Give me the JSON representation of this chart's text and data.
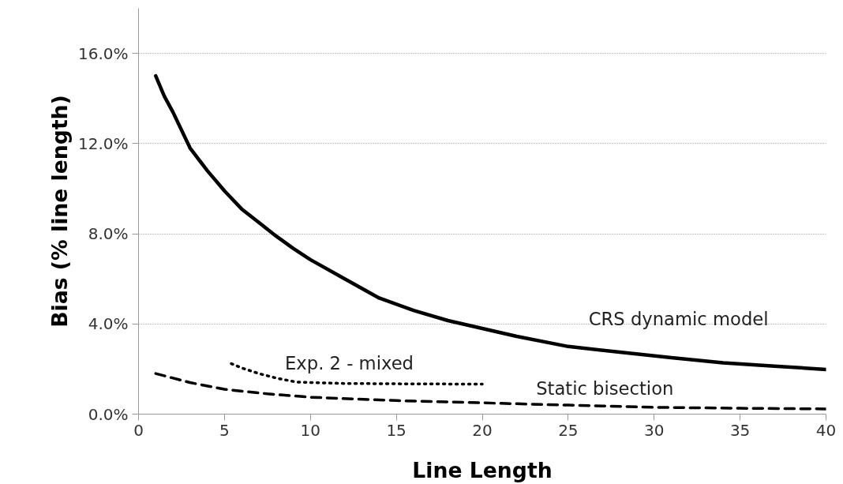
{
  "chart_data": {
    "type": "line",
    "xlabel": "Line Length",
    "ylabel": "Bias (% line length)",
    "xlim": [
      0,
      40
    ],
    "xticks": [
      0,
      5,
      10,
      15,
      20,
      25,
      30,
      35,
      40
    ],
    "ylim": [
      0,
      18
    ],
    "yticks": [
      {
        "value": 0,
        "label": "0.0%"
      },
      {
        "value": 4,
        "label": "4.0%"
      },
      {
        "value": 8,
        "label": "8.0%"
      },
      {
        "value": 12,
        "label": "12.0%"
      },
      {
        "value": 16,
        "label": "16.0%"
      }
    ],
    "grid": "y",
    "legend": false,
    "series": [
      {
        "name": "CRS dynamic model",
        "color": "#000000",
        "line_style": "solid",
        "x": [
          1,
          1.5,
          2,
          3,
          4,
          5,
          6,
          7,
          8,
          9,
          10,
          12,
          14,
          16,
          18,
          20,
          22,
          25,
          28,
          31,
          34,
          37,
          40
        ],
        "values": [
          15.0,
          14.1,
          13.4,
          11.8,
          10.8,
          9.9,
          9.1,
          8.5,
          7.9,
          7.35,
          6.85,
          6.0,
          5.15,
          4.6,
          4.15,
          3.8,
          3.45,
          3.0,
          2.75,
          2.5,
          2.28,
          2.13,
          1.98
        ]
      },
      {
        "name": "Exp. 2 - mixed",
        "color": "#000000",
        "line_style": "dotted",
        "x": [
          5.4,
          6,
          7,
          8,
          9.2,
          12,
          16,
          20
        ],
        "values": [
          2.24,
          2.05,
          1.8,
          1.6,
          1.42,
          1.36,
          1.34,
          1.33
        ]
      },
      {
        "name": "Static bisection",
        "color": "#000000",
        "line_style": "dashed",
        "x": [
          1,
          3,
          5,
          7.5,
          10,
          15,
          20,
          25,
          30,
          35,
          40
        ],
        "values": [
          1.8,
          1.4,
          1.1,
          0.9,
          0.75,
          0.6,
          0.5,
          0.4,
          0.3,
          0.26,
          0.23
        ]
      }
    ]
  }
}
